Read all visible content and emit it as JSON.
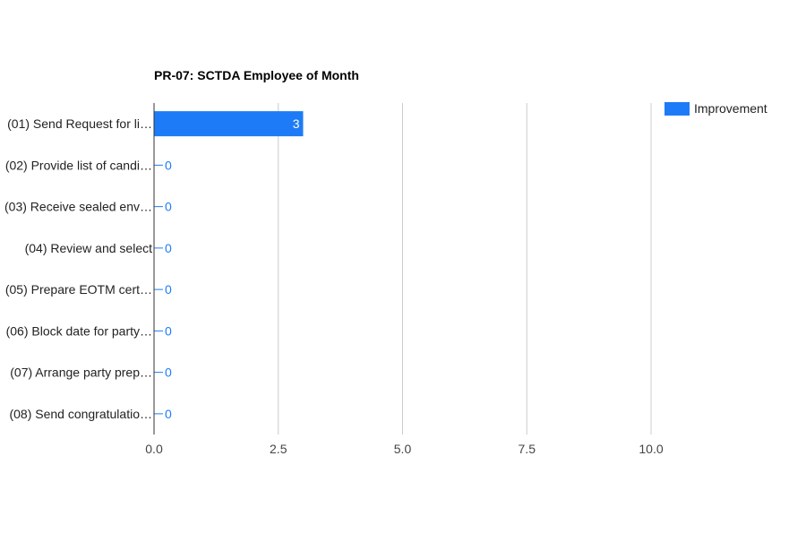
{
  "chart_data": {
    "type": "bar",
    "orientation": "horizontal",
    "title": "PR-07: SCTDA Employee of Month",
    "xlabel": "",
    "ylabel": "",
    "categories": [
      "(01) Send Request for li…",
      "(02) Provide list of candi…",
      "(03) Receive sealed env…",
      "(04) Review and select",
      "(05) Prepare EOTM cert…",
      "(06) Block date for party…",
      "(07) Arrange party prep…",
      "(08) Send congratulatio…"
    ],
    "series": [
      {
        "name": "Improvement",
        "values": [
          3,
          0,
          0,
          0,
          0,
          0,
          0,
          0
        ],
        "color": "#1e7bf7"
      }
    ],
    "data_labels": [
      "3",
      "0",
      "0",
      "0",
      "0",
      "0",
      "0",
      "0"
    ],
    "xlim": [
      0,
      10
    ],
    "xticks": [
      0,
      2.5,
      5,
      7.5,
      10
    ],
    "xtick_labels": [
      "0.0",
      "2.5",
      "5.0",
      "7.5",
      "10.0"
    ],
    "grid": true,
    "legend": "top-right"
  }
}
